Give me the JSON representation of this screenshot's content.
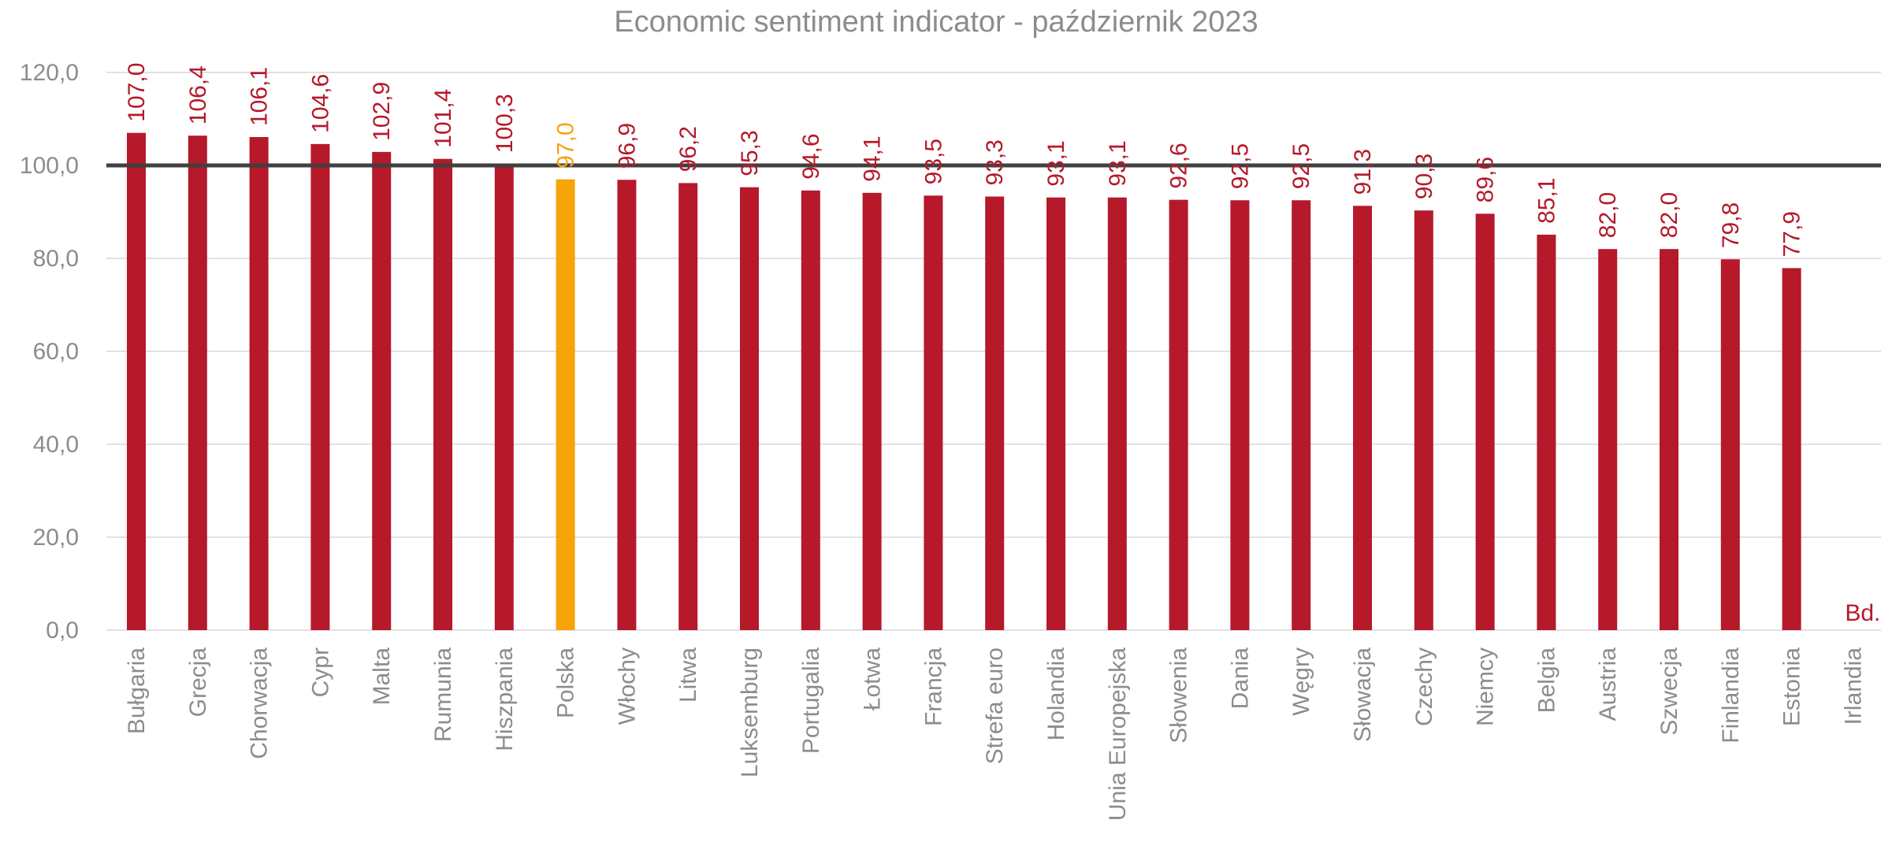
{
  "chart_data": {
    "type": "bar",
    "title": "Economic sentiment indicator - październik 2023",
    "xlabel": "",
    "ylabel": "",
    "ylim": [
      0,
      120
    ],
    "yticks": [
      "0,0",
      "20,0",
      "40,0",
      "60,0",
      "80,0",
      "100,0",
      "120,0"
    ],
    "reference_line": 100,
    "grid": true,
    "categories": [
      "Bułgaria",
      "Grecja",
      "Chorwacja",
      "Cypr",
      "Malta",
      "Rumunia",
      "Hiszpania",
      "Polska",
      "Włochy",
      "Litwa",
      "Luksemburg",
      "Portugalia",
      "Łotwa",
      "Francja",
      "Strefa euro",
      "Holandia",
      "Unia Europejska",
      "Słowenia",
      "Dania",
      "Węgry",
      "Słowacja",
      "Czechy",
      "Niemcy",
      "Belgia",
      "Austria",
      "Szwecja",
      "Finlandia",
      "Estonia",
      "Irlandia"
    ],
    "values": [
      107.0,
      106.4,
      106.1,
      104.6,
      102.9,
      101.4,
      100.3,
      97.0,
      96.9,
      96.2,
      95.3,
      94.6,
      94.1,
      93.5,
      93.3,
      93.1,
      93.1,
      92.6,
      92.5,
      92.5,
      91.3,
      90.3,
      89.6,
      85.1,
      82.0,
      82.0,
      79.8,
      77.9,
      null
    ],
    "data_labels": [
      "107,0",
      "106,4",
      "106,1",
      "104,6",
      "102,9",
      "101,4",
      "100,3",
      "97,0",
      "96,9",
      "96,2",
      "95,3",
      "94,6",
      "94,1",
      "93,5",
      "93,3",
      "93,1",
      "93,1",
      "92,6",
      "92,5",
      "92,5",
      "91,3",
      "90,3",
      "89,6",
      "85,1",
      "82,0",
      "82,0",
      "79,8",
      "77,9",
      "Bd."
    ],
    "highlight_index": 7,
    "colors": {
      "bar": "#b5192a",
      "highlight": "#f7a30a",
      "reference_line": "#404040",
      "grid": "#d9d9d9",
      "text": "#8c8c8c"
    }
  }
}
